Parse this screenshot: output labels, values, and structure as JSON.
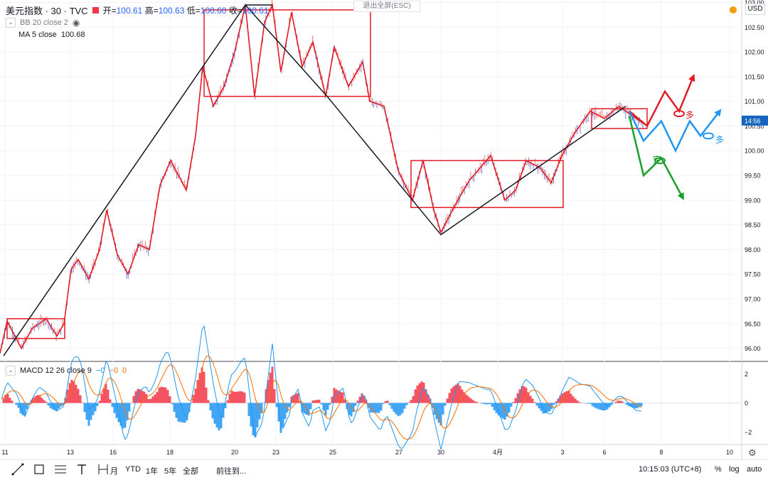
{
  "header": {
    "symbol": "美元指数 · 30 · TVC",
    "open_label": "开",
    "open": "100.61",
    "high_label": "高",
    "high": "100.63",
    "low_label": "低",
    "low": "100.60",
    "close_label": "收",
    "close": "100.61",
    "exit_fullscreen": "退出全屏(ESC)",
    "currency": "USD"
  },
  "indicators": {
    "bb": "BB 20 close 2",
    "ma_label": "MA 5 close",
    "ma_value": "100.68",
    "macd_label": "MACD 12 26 close 9",
    "macd_v1": "−0",
    "macd_v2": "−0",
    "macd_v3": "0"
  },
  "price_tag": "14:56",
  "toolbar": {
    "partial": "月",
    "ytd": "YTD",
    "y1": "1年",
    "y5": "5年",
    "all": "全部",
    "goto": "前往到...",
    "time": "10:15:03 (UTC+8)",
    "pct": "%",
    "log": "log",
    "auto": "auto"
  },
  "chart_data": {
    "type": "line",
    "yaxis": {
      "min": 95.75,
      "max": 103.05,
      "ticks": [
        "96.00",
        "96.50",
        "97.00",
        "97.50",
        "98.00",
        "98.50",
        "99.00",
        "99.50",
        "100.00",
        "100.50",
        "101.00",
        "101.50",
        "102.00",
        "102.50",
        "103.00"
      ],
      "current": 100.61
    },
    "xaxis_labels": [
      "11",
      "13",
      "16",
      "18",
      "20",
      "23",
      "25",
      "27",
      "30",
      "4月",
      "3",
      "6",
      "8",
      "10"
    ],
    "price_path": [
      [
        0,
        95.9
      ],
      [
        10,
        96.55
      ],
      [
        30,
        96.0
      ],
      [
        45,
        96.4
      ],
      [
        65,
        96.6
      ],
      [
        80,
        96.25
      ],
      [
        90,
        96.5
      ],
      [
        100,
        97.6
      ],
      [
        110,
        97.8
      ],
      [
        125,
        97.4
      ],
      [
        140,
        98.0
      ],
      [
        150,
        98.8
      ],
      [
        165,
        97.9
      ],
      [
        180,
        97.5
      ],
      [
        195,
        98.1
      ],
      [
        210,
        98.0
      ],
      [
        225,
        99.3
      ],
      [
        240,
        99.8
      ],
      [
        262,
        99.2
      ],
      [
        275,
        100.3
      ],
      [
        285,
        101.7
      ],
      [
        300,
        100.9
      ],
      [
        315,
        101.3
      ],
      [
        330,
        102.0
      ],
      [
        345,
        102.95
      ],
      [
        358,
        101.1
      ],
      [
        372,
        102.6
      ],
      [
        383,
        102.95
      ],
      [
        395,
        101.6
      ],
      [
        410,
        102.8
      ],
      [
        425,
        101.7
      ],
      [
        440,
        102.2
      ],
      [
        458,
        101.1
      ],
      [
        470,
        102.1
      ],
      [
        490,
        101.3
      ],
      [
        510,
        101.8
      ],
      [
        520,
        101.0
      ],
      [
        540,
        100.9
      ],
      [
        560,
        99.6
      ],
      [
        580,
        99.0
      ],
      [
        595,
        99.8
      ],
      [
        610,
        98.8
      ],
      [
        620,
        98.35
      ],
      [
        640,
        98.9
      ],
      [
        660,
        99.4
      ],
      [
        690,
        99.9
      ],
      [
        710,
        99.0
      ],
      [
        725,
        99.2
      ],
      [
        740,
        99.8
      ],
      [
        760,
        99.65
      ],
      [
        775,
        99.35
      ],
      [
        790,
        99.9
      ],
      [
        810,
        100.4
      ],
      [
        830,
        100.8
      ],
      [
        850,
        100.65
      ],
      [
        870,
        100.9
      ],
      [
        880,
        100.8
      ],
      [
        895,
        100.65
      ],
      [
        905,
        100.55
      ]
    ],
    "elliott_lines": [
      [
        [
          5,
          95.85
        ],
        [
          345,
          102.95
        ],
        [
          460,
          101.1
        ],
        [
          620,
          98.3
        ],
        [
          880,
          100.9
        ]
      ],
      [
        [
          345,
          102.95
        ],
        [
          383,
          102.95
        ]
      ]
    ],
    "boxes": [
      [
        10,
        91,
        96.6,
        96.2
      ],
      [
        287,
        521,
        102.85,
        101.1
      ],
      [
        578,
        792,
        99.8,
        98.85
      ],
      [
        832,
        910,
        100.85,
        100.45
      ]
    ],
    "projection_up": {
      "label": "多",
      "points": [
        [
          885,
          100.8
        ],
        [
          910,
          100.5
        ],
        [
          935,
          101.2
        ],
        [
          955,
          100.8
        ],
        [
          975,
          101.5
        ]
      ]
    },
    "projection_mid": {
      "label": "多",
      "points": [
        [
          885,
          100.8
        ],
        [
          905,
          100.2
        ],
        [
          930,
          100.6
        ],
        [
          950,
          100.0
        ],
        [
          970,
          100.6
        ],
        [
          985,
          100.3
        ],
        [
          1012,
          100.8
        ]
      ]
    },
    "projection_down": {
      "label": "空",
      "points": [
        [
          885,
          100.7
        ],
        [
          905,
          99.5
        ],
        [
          930,
          99.85
        ],
        [
          960,
          99.05
        ]
      ]
    },
    "macd": {
      "ticks": [
        "2",
        "0",
        "−2"
      ],
      "range": [
        -2.8,
        2.8
      ]
    }
  }
}
